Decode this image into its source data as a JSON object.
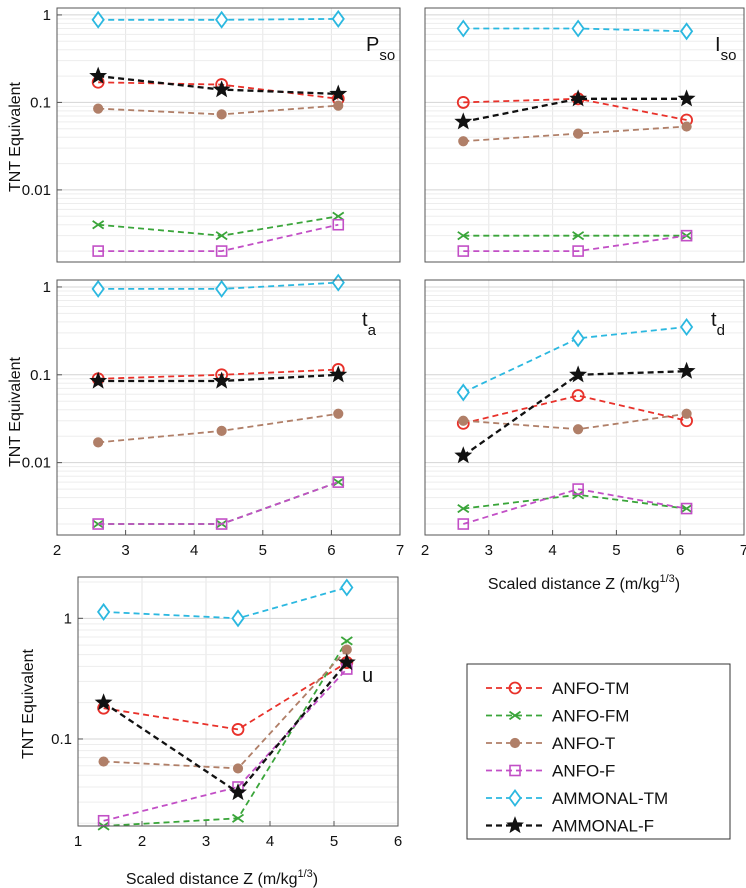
{
  "figure": {
    "legend": {
      "placement": "lower-right",
      "items": [
        {
          "name": "ANFO-TM",
          "color": "#e8312a",
          "marker": "circle"
        },
        {
          "name": "ANFO-FM",
          "color": "#3aa53a",
          "marker": "x"
        },
        {
          "name": "ANFO-T",
          "color": "#b07f68",
          "marker": "dot"
        },
        {
          "name": "ANFO-F",
          "color": "#c24fc6",
          "marker": "square"
        },
        {
          "name": "AMMONAL-TM",
          "color": "#2bb8e0",
          "marker": "diamond"
        },
        {
          "name": "AMMONAL-F",
          "color": "#111111",
          "marker": "star"
        }
      ]
    }
  },
  "chart_data": [
    {
      "type": "line",
      "panel_label": "P",
      "panel_label_sub": "so",
      "ylabel": "TNT Equivalent",
      "xlabel": "",
      "yscale": "log",
      "ylim": [
        0.0015,
        1.2
      ],
      "xlim": [
        2,
        7
      ],
      "x_ticks": [],
      "y_ticks": [
        0.01,
        0.1,
        1
      ],
      "y_tick_labels": [
        "0.01",
        "0.1",
        "1"
      ],
      "grid": true,
      "x": [
        2.6,
        4.4,
        6.1
      ],
      "series": [
        {
          "name": "ANFO-TM",
          "values": [
            0.17,
            0.16,
            0.11
          ]
        },
        {
          "name": "ANFO-FM",
          "values": [
            0.004,
            0.003,
            0.005
          ]
        },
        {
          "name": "ANFO-T",
          "values": [
            0.085,
            0.073,
            0.092
          ]
        },
        {
          "name": "ANFO-F",
          "values": [
            0.002,
            0.002,
            0.004
          ]
        },
        {
          "name": "AMMONAL-TM",
          "values": [
            0.88,
            0.88,
            0.9
          ]
        },
        {
          "name": "AMMONAL-F",
          "values": [
            0.2,
            0.14,
            0.125
          ]
        }
      ]
    },
    {
      "type": "line",
      "panel_label": "I",
      "panel_label_sub": "so",
      "ylabel": "",
      "xlabel": "",
      "yscale": "log",
      "ylim": [
        0.0015,
        1.2
      ],
      "xlim": [
        2,
        7
      ],
      "x_ticks": [],
      "y_ticks": [],
      "y_tick_labels": [],
      "grid": true,
      "x": [
        2.6,
        4.4,
        6.1
      ],
      "series": [
        {
          "name": "ANFO-TM",
          "values": [
            0.1,
            0.11,
            0.063
          ]
        },
        {
          "name": "ANFO-FM",
          "values": [
            0.003,
            0.003,
            0.003
          ]
        },
        {
          "name": "ANFO-T",
          "values": [
            0.036,
            0.044,
            0.053
          ]
        },
        {
          "name": "ANFO-F",
          "values": [
            0.002,
            0.002,
            0.003
          ]
        },
        {
          "name": "AMMONAL-TM",
          "values": [
            0.7,
            0.7,
            0.65
          ]
        },
        {
          "name": "AMMONAL-F",
          "values": [
            0.06,
            0.11,
            0.11
          ]
        }
      ]
    },
    {
      "type": "line",
      "panel_label": "t",
      "panel_label_sub": "a",
      "ylabel": "TNT Equivalent",
      "xlabel": "",
      "yscale": "log",
      "ylim": [
        0.0015,
        1.2
      ],
      "xlim": [
        2,
        7
      ],
      "x_ticks": [
        2,
        3,
        4,
        5,
        6,
        7
      ],
      "y_ticks": [
        0.01,
        0.1,
        1
      ],
      "y_tick_labels": [
        "0.01",
        "0.1",
        "1"
      ],
      "grid": true,
      "x": [
        2.6,
        4.4,
        6.1
      ],
      "series": [
        {
          "name": "ANFO-TM",
          "values": [
            0.09,
            0.1,
            0.115
          ]
        },
        {
          "name": "ANFO-FM",
          "values": [
            0.002,
            0.002,
            0.006
          ]
        },
        {
          "name": "ANFO-T",
          "values": [
            0.017,
            0.023,
            0.036
          ]
        },
        {
          "name": "ANFO-F",
          "values": [
            0.002,
            0.002,
            0.006
          ]
        },
        {
          "name": "AMMONAL-TM",
          "values": [
            0.95,
            0.95,
            1.12
          ]
        },
        {
          "name": "AMMONAL-F",
          "values": [
            0.085,
            0.085,
            0.1
          ]
        }
      ]
    },
    {
      "type": "line",
      "panel_label": "t",
      "panel_label_sub": "d",
      "ylabel": "",
      "xlabel": "Scaled distance Z (m/kg",
      "xlabel_sup": "1/3",
      "xlabel_tail": ")",
      "yscale": "log",
      "ylim": [
        0.0015,
        1.2
      ],
      "xlim": [
        2,
        7
      ],
      "x_ticks": [
        2,
        3,
        4,
        5,
        6,
        7
      ],
      "y_ticks": [],
      "y_tick_labels": [],
      "grid": true,
      "x": [
        2.6,
        4.4,
        6.1
      ],
      "series": [
        {
          "name": "ANFO-TM",
          "values": [
            0.028,
            0.058,
            0.03
          ]
        },
        {
          "name": "ANFO-FM",
          "values": [
            0.003,
            0.0043,
            0.003
          ]
        },
        {
          "name": "ANFO-T",
          "values": [
            0.03,
            0.024,
            0.036
          ]
        },
        {
          "name": "ANFO-F",
          "values": [
            0.002,
            0.005,
            0.003
          ]
        },
        {
          "name": "AMMONAL-TM",
          "values": [
            0.063,
            0.26,
            0.35
          ]
        },
        {
          "name": "AMMONAL-F",
          "values": [
            0.012,
            0.1,
            0.11
          ]
        }
      ]
    },
    {
      "type": "line",
      "panel_label": "u",
      "panel_label_sub": "",
      "ylabel": "TNT Equivalent",
      "xlabel": "Scaled distance Z (m/kg",
      "xlabel_sup": "1/3",
      "xlabel_tail": ")",
      "yscale": "log",
      "ylim": [
        0.019,
        2.2
      ],
      "xlim": [
        1,
        6
      ],
      "x_ticks": [
        1,
        2,
        3,
        4,
        5,
        6
      ],
      "y_ticks": [
        0.1,
        1
      ],
      "y_tick_labels": [
        "0.1",
        "1"
      ],
      "grid": true,
      "x": [
        1.4,
        3.5,
        5.2
      ],
      "series": [
        {
          "name": "ANFO-TM",
          "values": [
            0.18,
            0.12,
            0.43
          ]
        },
        {
          "name": "ANFO-FM",
          "values": [
            0.019,
            0.022,
            0.65
          ]
        },
        {
          "name": "ANFO-T",
          "values": [
            0.065,
            0.057,
            0.55
          ]
        },
        {
          "name": "ANFO-F",
          "values": [
            0.021,
            0.04,
            0.38
          ]
        },
        {
          "name": "AMMONAL-TM",
          "values": [
            1.13,
            1.0,
            1.8
          ]
        },
        {
          "name": "AMMONAL-F",
          "values": [
            0.2,
            0.036,
            0.43
          ]
        }
      ]
    }
  ]
}
